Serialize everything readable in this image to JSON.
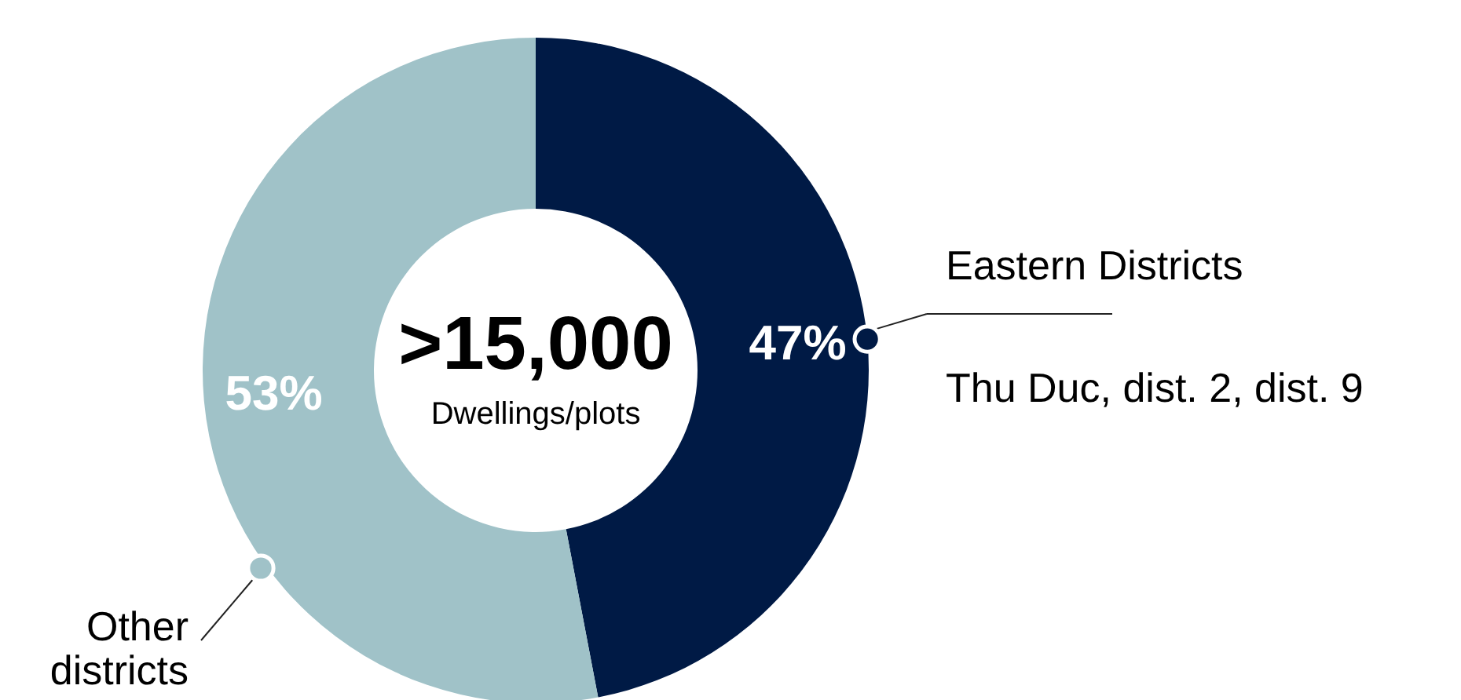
{
  "chart_data": {
    "type": "donut",
    "categories": [
      "Eastern Districts",
      "Other\ndistricts"
    ],
    "values": [
      47,
      53
    ],
    "colors": [
      "#001a45",
      "#a0c2c8"
    ],
    "value_labels": [
      "47%",
      "53%"
    ],
    "annotations": [
      ">15,000",
      "Dwellings/plots",
      "Thu Duc, dist. 2, dist. 9"
    ]
  }
}
